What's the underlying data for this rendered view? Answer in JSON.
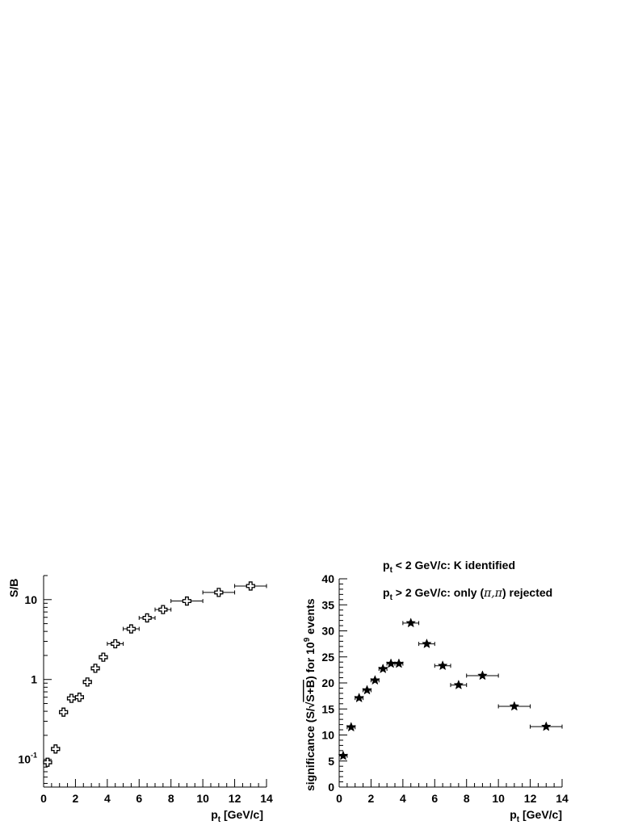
{
  "chart_data": [
    {
      "type": "scatter",
      "ylog": true,
      "ylabel": "S/B",
      "xlabel_main": "p",
      "xlabel_sub": "t",
      "xlabel_rest": " [GeV/c]",
      "xlim": [
        0,
        14
      ],
      "ylim": [
        0.045,
        20
      ],
      "xticks": [
        0,
        2,
        4,
        6,
        8,
        10,
        12,
        14
      ],
      "yticklabels": [
        {
          "value": 0.1,
          "base": "10",
          "exp": "-1"
        },
        {
          "value": 1,
          "base": "1",
          "exp": ""
        },
        {
          "value": 10,
          "base": "10",
          "exp": ""
        }
      ],
      "marker": "open-cross",
      "points": [
        {
          "x": 0.25,
          "xerr": 0.25,
          "y": 0.092
        },
        {
          "x": 0.75,
          "xerr": 0.25,
          "y": 0.135
        },
        {
          "x": 1.25,
          "xerr": 0.25,
          "y": 0.39
        },
        {
          "x": 1.75,
          "xerr": 0.25,
          "y": 0.58
        },
        {
          "x": 2.25,
          "xerr": 0.25,
          "y": 0.6
        },
        {
          "x": 2.75,
          "xerr": 0.25,
          "y": 0.93
        },
        {
          "x": 3.25,
          "xerr": 0.25,
          "y": 1.38
        },
        {
          "x": 3.75,
          "xerr": 0.25,
          "y": 1.9
        },
        {
          "x": 4.5,
          "xerr": 0.5,
          "y": 2.8
        },
        {
          "x": 5.5,
          "xerr": 0.5,
          "y": 4.3
        },
        {
          "x": 6.5,
          "xerr": 0.5,
          "y": 5.9
        },
        {
          "x": 7.5,
          "xerr": 0.5,
          "y": 7.5
        },
        {
          "x": 9.0,
          "xerr": 1.0,
          "y": 9.6
        },
        {
          "x": 11.0,
          "xerr": 1.0,
          "y": 12.3
        },
        {
          "x": 13.0,
          "xerr": 1.0,
          "y": 14.8
        }
      ]
    },
    {
      "type": "scatter",
      "ylabel_pre": "significance (S/",
      "ylabel_sqrt": "S+B",
      "ylabel_mid": ") for 10",
      "ylabel_exp": "9",
      "ylabel_post": " events",
      "xlabel_main": "p",
      "xlabel_sub": "t",
      "xlabel_rest": " [GeV/c]",
      "xlim": [
        0,
        14
      ],
      "ylim": [
        0,
        40
      ],
      "xticks": [
        0,
        2,
        4,
        6,
        8,
        10,
        12,
        14
      ],
      "yticks": [
        0,
        5,
        10,
        15,
        20,
        25,
        30,
        35,
        40
      ],
      "marker": "filled-star",
      "annotation1_main": "p",
      "annotation1_sub": "t",
      "annotation1_rest": " < 2 GeV/c: K identified",
      "annotation2_main": "p",
      "annotation2_sub": "t",
      "annotation2_pre": " > 2 GeV/c: only (",
      "annotation2_pi": "π,π",
      "annotation2_post": ") rejected",
      "points": [
        {
          "x": 0.25,
          "xerr": 0.25,
          "y": 6.0
        },
        {
          "x": 0.75,
          "xerr": 0.25,
          "y": 11.5
        },
        {
          "x": 1.25,
          "xerr": 0.25,
          "y": 17.1
        },
        {
          "x": 1.75,
          "xerr": 0.25,
          "y": 18.6
        },
        {
          "x": 2.25,
          "xerr": 0.25,
          "y": 20.5
        },
        {
          "x": 2.75,
          "xerr": 0.25,
          "y": 22.7
        },
        {
          "x": 3.25,
          "xerr": 0.25,
          "y": 23.7
        },
        {
          "x": 3.75,
          "xerr": 0.25,
          "y": 23.7
        },
        {
          "x": 4.5,
          "xerr": 0.5,
          "y": 31.5
        },
        {
          "x": 5.5,
          "xerr": 0.5,
          "y": 27.5
        },
        {
          "x": 6.5,
          "xerr": 0.5,
          "y": 23.3
        },
        {
          "x": 7.5,
          "xerr": 0.5,
          "y": 19.6
        },
        {
          "x": 9.0,
          "xerr": 1.0,
          "y": 21.4
        },
        {
          "x": 11.0,
          "xerr": 1.0,
          "y": 15.5
        },
        {
          "x": 13.0,
          "xerr": 1.0,
          "y": 11.6
        }
      ]
    }
  ]
}
